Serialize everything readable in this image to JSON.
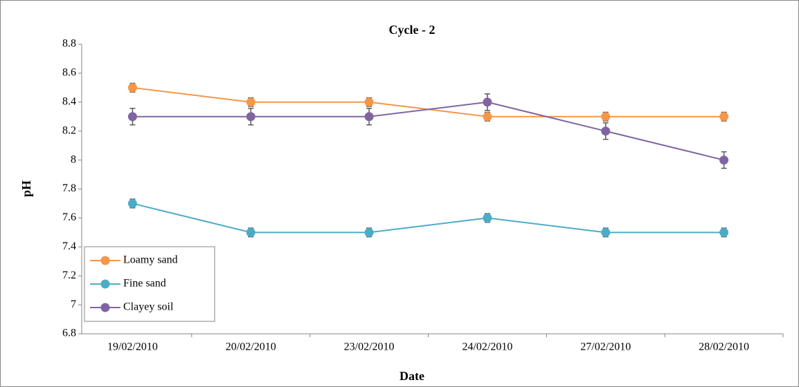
{
  "chart_data": {
    "type": "line",
    "title": "Cycle - 2",
    "x_label": "Date",
    "y_label": "pH",
    "categories": [
      "19/02/2010",
      "20/02/2010",
      "23/02/2010",
      "24/02/2010",
      "27/02/2010",
      "28/02/2010"
    ],
    "series": [
      {
        "name": "Loamy sand",
        "color": "#f79646",
        "values": [
          8.5,
          8.4,
          8.4,
          8.3,
          8.3,
          8.3
        ],
        "errors": [
          0.03,
          0.03,
          0.03,
          0.03,
          0.03,
          0.03
        ]
      },
      {
        "name": "Fine sand",
        "color": "#4bacc6",
        "values": [
          7.7,
          7.5,
          7.5,
          7.6,
          7.5,
          7.5
        ],
        "errors": [
          0.03,
          0.03,
          0.03,
          0.03,
          0.03,
          0.03
        ]
      },
      {
        "name": "Clayey soil",
        "color": "#8064a2",
        "values": [
          8.3,
          8.3,
          8.3,
          8.4,
          8.2,
          8.0
        ],
        "errors": [
          0.057,
          0.057,
          0.057,
          0.057,
          0.057,
          0.057
        ]
      }
    ],
    "ylim": [
      6.8,
      8.8
    ],
    "yticks": [
      6.8,
      7,
      7.2,
      7.4,
      7.6,
      7.8,
      8,
      8.2,
      8.4,
      8.6,
      8.8
    ],
    "grid": false,
    "legend": "lower left"
  }
}
